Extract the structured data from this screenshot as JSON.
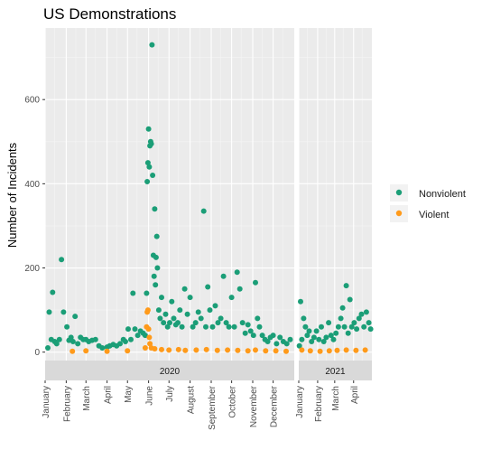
{
  "chart_data": {
    "type": "scatter",
    "title": "US Demonstrations",
    "xlabel": "",
    "ylabel": "Number of Incidents",
    "ylim": [
      -20,
      770
    ],
    "yticks": [
      0,
      200,
      400,
      600
    ],
    "grid": true,
    "legend_position": "right",
    "facets": [
      {
        "label": "2020",
        "x_range": [
          "2020-01-01",
          "2020-12-31"
        ],
        "x_ticks": [
          "January",
          "February",
          "March",
          "April",
          "May",
          "June",
          "July",
          "August",
          "September",
          "October",
          "November",
          "December"
        ]
      },
      {
        "label": "2021",
        "x_range": [
          "2021-01-01",
          "2021-04-30"
        ],
        "x_ticks": [
          "January",
          "February",
          "March",
          "April"
        ]
      }
    ],
    "series": [
      {
        "name": "Nonviolent",
        "color": "#1b9e77",
        "points": [
          [
            "2020-01-05",
            10
          ],
          [
            "2020-01-07",
            95
          ],
          [
            "2020-01-10",
            30
          ],
          [
            "2020-01-12",
            142
          ],
          [
            "2020-01-15",
            25
          ],
          [
            "2020-01-18",
            20
          ],
          [
            "2020-01-22",
            30
          ],
          [
            "2020-01-25",
            220
          ],
          [
            "2020-01-28",
            95
          ],
          [
            "2020-02-02",
            60
          ],
          [
            "2020-02-05",
            28
          ],
          [
            "2020-02-08",
            35
          ],
          [
            "2020-02-11",
            25
          ],
          [
            "2020-02-14",
            85
          ],
          [
            "2020-02-18",
            20
          ],
          [
            "2020-02-22",
            35
          ],
          [
            "2020-02-26",
            30
          ],
          [
            "2020-03-01",
            30
          ],
          [
            "2020-03-05",
            25
          ],
          [
            "2020-03-10",
            28
          ],
          [
            "2020-03-15",
            30
          ],
          [
            "2020-03-20",
            15
          ],
          [
            "2020-03-25",
            10
          ],
          [
            "2020-04-01",
            12
          ],
          [
            "2020-04-05",
            15
          ],
          [
            "2020-04-10",
            18
          ],
          [
            "2020-04-15",
            15
          ],
          [
            "2020-04-20",
            20
          ],
          [
            "2020-04-25",
            30
          ],
          [
            "2020-04-28",
            25
          ],
          [
            "2020-05-02",
            55
          ],
          [
            "2020-05-06",
            30
          ],
          [
            "2020-05-09",
            140
          ],
          [
            "2020-05-12",
            55
          ],
          [
            "2020-05-16",
            40
          ],
          [
            "2020-05-20",
            50
          ],
          [
            "2020-05-24",
            45
          ],
          [
            "2020-05-27",
            40
          ],
          [
            "2020-05-29",
            140
          ],
          [
            "2020-05-30",
            405
          ],
          [
            "2020-05-31",
            450
          ],
          [
            "2020-06-01",
            530
          ],
          [
            "2020-06-02",
            440
          ],
          [
            "2020-06-03",
            490
          ],
          [
            "2020-06-04",
            500
          ],
          [
            "2020-06-05",
            495
          ],
          [
            "2020-06-06",
            730
          ],
          [
            "2020-06-07",
            420
          ],
          [
            "2020-06-08",
            230
          ],
          [
            "2020-06-09",
            180
          ],
          [
            "2020-06-10",
            340
          ],
          [
            "2020-06-11",
            160
          ],
          [
            "2020-06-12",
            225
          ],
          [
            "2020-06-13",
            275
          ],
          [
            "2020-06-14",
            200
          ],
          [
            "2020-06-16",
            100
          ],
          [
            "2020-06-18",
            80
          ],
          [
            "2020-06-20",
            130
          ],
          [
            "2020-06-23",
            70
          ],
          [
            "2020-06-26",
            90
          ],
          [
            "2020-06-29",
            60
          ],
          [
            "2020-07-02",
            70
          ],
          [
            "2020-07-05",
            120
          ],
          [
            "2020-07-08",
            80
          ],
          [
            "2020-07-11",
            65
          ],
          [
            "2020-07-14",
            70
          ],
          [
            "2020-07-17",
            100
          ],
          [
            "2020-07-20",
            60
          ],
          [
            "2020-07-24",
            150
          ],
          [
            "2020-07-28",
            90
          ],
          [
            "2020-08-01",
            130
          ],
          [
            "2020-08-05",
            60
          ],
          [
            "2020-08-09",
            70
          ],
          [
            "2020-08-13",
            95
          ],
          [
            "2020-08-17",
            80
          ],
          [
            "2020-08-21",
            335
          ],
          [
            "2020-08-24",
            60
          ],
          [
            "2020-08-27",
            155
          ],
          [
            "2020-08-30",
            100
          ],
          [
            "2020-09-03",
            60
          ],
          [
            "2020-09-07",
            110
          ],
          [
            "2020-09-11",
            70
          ],
          [
            "2020-09-15",
            80
          ],
          [
            "2020-09-19",
            180
          ],
          [
            "2020-09-23",
            70
          ],
          [
            "2020-09-27",
            60
          ],
          [
            "2020-10-01",
            130
          ],
          [
            "2020-10-05",
            60
          ],
          [
            "2020-10-09",
            190
          ],
          [
            "2020-10-13",
            150
          ],
          [
            "2020-10-17",
            70
          ],
          [
            "2020-10-21",
            45
          ],
          [
            "2020-10-25",
            65
          ],
          [
            "2020-10-29",
            50
          ],
          [
            "2020-11-02",
            40
          ],
          [
            "2020-11-05",
            165
          ],
          [
            "2020-11-08",
            80
          ],
          [
            "2020-11-11",
            60
          ],
          [
            "2020-11-15",
            40
          ],
          [
            "2020-11-19",
            30
          ],
          [
            "2020-11-23",
            25
          ],
          [
            "2020-11-27",
            35
          ],
          [
            "2020-12-01",
            40
          ],
          [
            "2020-12-06",
            20
          ],
          [
            "2020-12-11",
            35
          ],
          [
            "2020-12-16",
            25
          ],
          [
            "2020-12-21",
            20
          ],
          [
            "2020-12-26",
            30
          ],
          [
            "2021-01-02",
            15
          ],
          [
            "2021-01-04",
            120
          ],
          [
            "2021-01-06",
            30
          ],
          [
            "2021-01-09",
            80
          ],
          [
            "2021-01-12",
            60
          ],
          [
            "2021-01-15",
            40
          ],
          [
            "2021-01-18",
            50
          ],
          [
            "2021-01-22",
            25
          ],
          [
            "2021-01-26",
            35
          ],
          [
            "2021-01-30",
            50
          ],
          [
            "2021-02-03",
            30
          ],
          [
            "2021-02-07",
            60
          ],
          [
            "2021-02-11",
            25
          ],
          [
            "2021-02-15",
            35
          ],
          [
            "2021-02-19",
            70
          ],
          [
            "2021-02-23",
            40
          ],
          [
            "2021-02-27",
            30
          ],
          [
            "2021-03-03",
            45
          ],
          [
            "2021-03-07",
            60
          ],
          [
            "2021-03-11",
            80
          ],
          [
            "2021-03-14",
            105
          ],
          [
            "2021-03-17",
            60
          ],
          [
            "2021-03-20",
            158
          ],
          [
            "2021-03-23",
            45
          ],
          [
            "2021-03-26",
            125
          ],
          [
            "2021-03-29",
            60
          ],
          [
            "2021-04-02",
            70
          ],
          [
            "2021-04-06",
            55
          ],
          [
            "2021-04-10",
            80
          ],
          [
            "2021-04-14",
            90
          ],
          [
            "2021-04-18",
            60
          ],
          [
            "2021-04-22",
            95
          ],
          [
            "2021-04-26",
            70
          ],
          [
            "2021-04-29",
            55
          ]
        ]
      },
      {
        "name": "Violent",
        "color": "#ff9a1a",
        "points": [
          [
            "2020-02-10",
            2
          ],
          [
            "2020-03-01",
            3
          ],
          [
            "2020-04-01",
            2
          ],
          [
            "2020-05-01",
            3
          ],
          [
            "2020-05-27",
            10
          ],
          [
            "2020-05-29",
            60
          ],
          [
            "2020-05-30",
            95
          ],
          [
            "2020-05-31",
            100
          ],
          [
            "2020-06-01",
            55
          ],
          [
            "2020-06-02",
            35
          ],
          [
            "2020-06-03",
            20
          ],
          [
            "2020-06-05",
            10
          ],
          [
            "2020-06-10",
            8
          ],
          [
            "2020-06-20",
            6
          ],
          [
            "2020-07-01",
            5
          ],
          [
            "2020-07-15",
            6
          ],
          [
            "2020-07-25",
            4
          ],
          [
            "2020-08-10",
            5
          ],
          [
            "2020-08-25",
            6
          ],
          [
            "2020-09-10",
            4
          ],
          [
            "2020-09-25",
            5
          ],
          [
            "2020-10-10",
            4
          ],
          [
            "2020-10-25",
            3
          ],
          [
            "2020-11-05",
            5
          ],
          [
            "2020-11-20",
            3
          ],
          [
            "2020-12-05",
            3
          ],
          [
            "2020-12-20",
            2
          ],
          [
            "2021-01-06",
            5
          ],
          [
            "2021-01-20",
            3
          ],
          [
            "2021-02-05",
            2
          ],
          [
            "2021-02-20",
            3
          ],
          [
            "2021-03-05",
            4
          ],
          [
            "2021-03-20",
            5
          ],
          [
            "2021-04-05",
            4
          ],
          [
            "2021-04-20",
            5
          ]
        ]
      }
    ]
  }
}
